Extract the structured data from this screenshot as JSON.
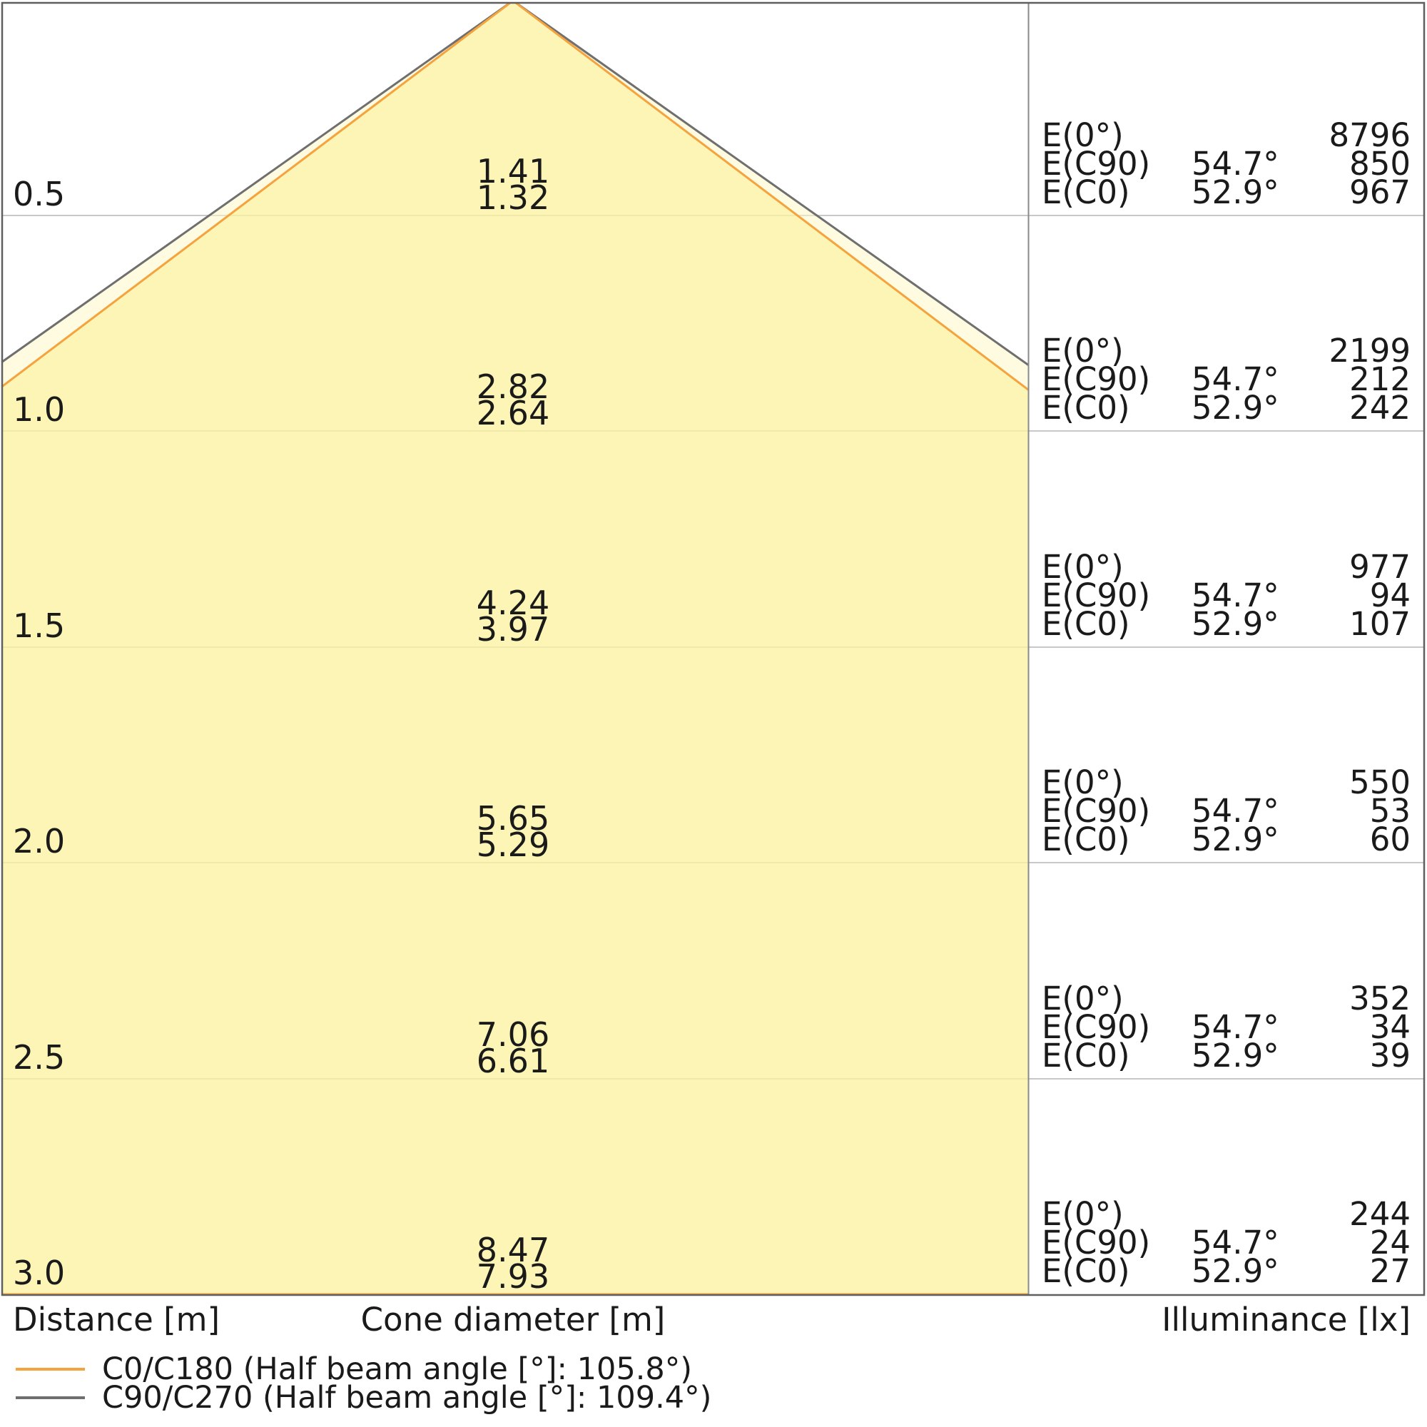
{
  "chart_data": {
    "type": "area",
    "description": "Light cone diagram: beam spread vs mounting distance with illuminance table",
    "x_axis_label": "Cone diameter [m]",
    "y_axis_label": "Distance [m]",
    "value_axis_label": "Illuminance [lx]",
    "distances_m": [
      0.5,
      1.0,
      1.5,
      2.0,
      2.5,
      3.0
    ],
    "series": [
      {
        "name": "C0/C180",
        "half_beam_angle_full_deg": 105.8,
        "half_angle_deg": 52.9,
        "cone_diameters_m": [
          1.32,
          2.64,
          3.97,
          5.29,
          6.61,
          7.93
        ],
        "illuminance_lx": [
          967,
          242,
          107,
          60,
          39,
          27
        ],
        "color": "#f4a33e"
      },
      {
        "name": "C90/C270",
        "half_beam_angle_full_deg": 109.4,
        "half_angle_deg": 54.7,
        "cone_diameters_m": [
          1.41,
          2.82,
          4.24,
          5.65,
          7.06,
          8.47
        ],
        "illuminance_lx": [
          850,
          212,
          94,
          53,
          34,
          24
        ],
        "color": "#6f6f6f"
      }
    ],
    "e0_illuminance_lx": [
      8796,
      2199,
      977,
      550,
      352,
      244
    ],
    "layout": {
      "equal_xy_scale": true,
      "gridlines": true,
      "legend_position": "bottom-left"
    },
    "colors": {
      "cone_outer_fill": "rgba(255,248,198,0.55)",
      "cone_inner_fill": "rgba(250,240,140,0.5)",
      "gridline": "#c8c8c8",
      "border": "#5f5f5f",
      "divider": "#8a8a8a"
    }
  },
  "labels": {
    "distance_axis": "Distance [m]",
    "cone_axis": "Cone diameter [m]",
    "illuminance_axis": "Illuminance [lx]"
  },
  "legend": [
    {
      "label": "C0/C180 (Half beam angle [°]: 105.8°)",
      "color": "#f4a33e"
    },
    {
      "label": "C90/C270 (Half beam angle [°]: 109.4°)",
      "color": "#6f6f6f"
    }
  ],
  "rows": [
    {
      "distance": "0.5",
      "cone_c90": "1.41",
      "cone_c0": "1.32",
      "e0_label": "E(0°)",
      "e0": "8796",
      "ec90_label": "E(C90)",
      "ec90_angle": "54.7°",
      "ec90": "850",
      "ec0_label": "E(C0)",
      "ec0_angle": "52.9°",
      "ec0": "967"
    },
    {
      "distance": "1.0",
      "cone_c90": "2.82",
      "cone_c0": "2.64",
      "e0_label": "E(0°)",
      "e0": "2199",
      "ec90_label": "E(C90)",
      "ec90_angle": "54.7°",
      "ec90": "212",
      "ec0_label": "E(C0)",
      "ec0_angle": "52.9°",
      "ec0": "242"
    },
    {
      "distance": "1.5",
      "cone_c90": "4.24",
      "cone_c0": "3.97",
      "e0_label": "E(0°)",
      "e0": "977",
      "ec90_label": "E(C90)",
      "ec90_angle": "54.7°",
      "ec90": "94",
      "ec0_label": "E(C0)",
      "ec0_angle": "52.9°",
      "ec0": "107"
    },
    {
      "distance": "2.0",
      "cone_c90": "5.65",
      "cone_c0": "5.29",
      "e0_label": "E(0°)",
      "e0": "550",
      "ec90_label": "E(C90)",
      "ec90_angle": "54.7°",
      "ec90": "53",
      "ec0_label": "E(C0)",
      "ec0_angle": "52.9°",
      "ec0": "60"
    },
    {
      "distance": "2.5",
      "cone_c90": "7.06",
      "cone_c0": "6.61",
      "e0_label": "E(0°)",
      "e0": "352",
      "ec90_label": "E(C90)",
      "ec90_angle": "54.7°",
      "ec90": "34",
      "ec0_label": "E(C0)",
      "ec0_angle": "52.9°",
      "ec0": "39"
    },
    {
      "distance": "3.0",
      "cone_c90": "8.47",
      "cone_c0": "7.93",
      "e0_label": "E(0°)",
      "e0": "244",
      "ec90_label": "E(C90)",
      "ec90_angle": "54.7°",
      "ec90": "24",
      "ec0_label": "E(C0)",
      "ec0_angle": "52.9°",
      "ec0": "27"
    }
  ]
}
